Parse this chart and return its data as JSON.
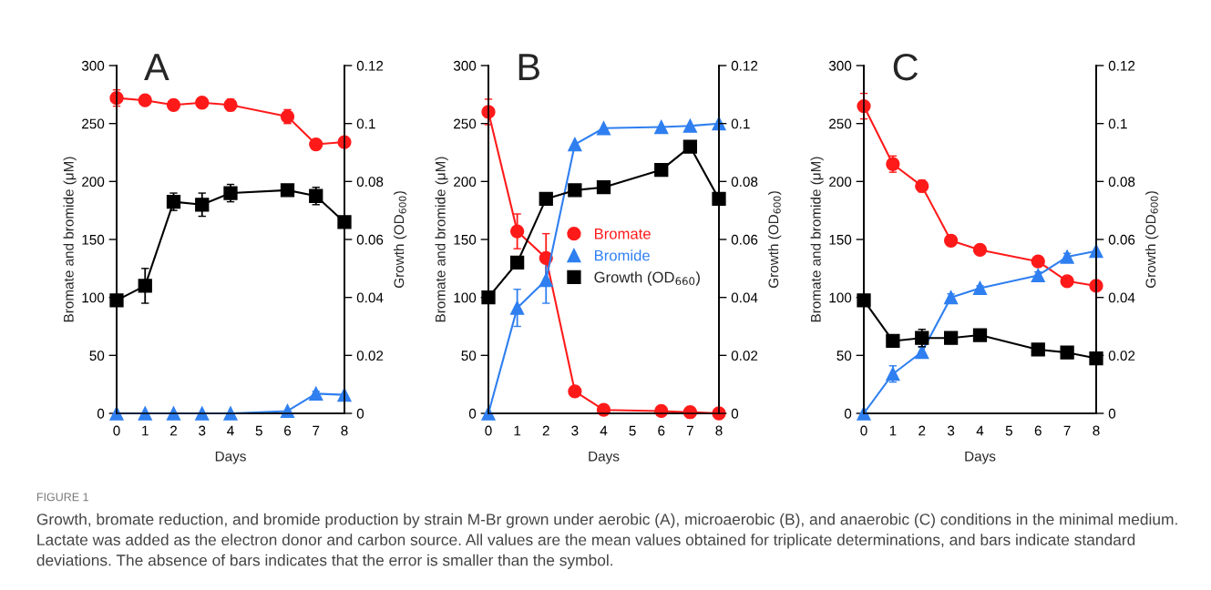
{
  "chart_data": [
    {
      "type": "line",
      "title": "A",
      "xlabel": "Days",
      "ylabel": "Bromate and bromide (μM)",
      "y2label": "Growth (OD$_{600}$)",
      "x": [
        0,
        1,
        2,
        3,
        4,
        6,
        7,
        8
      ],
      "xlim": [
        0,
        8
      ],
      "xticks": [
        0,
        1,
        2,
        3,
        4,
        5,
        6,
        7,
        8
      ],
      "ylim": [
        0,
        300
      ],
      "yticks": [
        0,
        50,
        100,
        150,
        200,
        250,
        300
      ],
      "y2lim": [
        0,
        0.12
      ],
      "y2ticks": [
        0,
        0.02,
        0.04,
        0.06,
        0.08,
        0.1,
        0.12
      ],
      "grid": false,
      "legend": false,
      "annotations": [
        "FIGURE 1",
        "Growth, bromate reduction, and bromide production by strain M-Br grown under aerobic (A), microaerobic (B), and anaerobic (C) conditions in the minimal medium. Lactate was added as the electron donor and carbon source. All values are the mean values obtained for triplicate determinations, and bars indicate standard deviations. The absence of bars indicates that the error is smaller than the symbol."
      ],
      "series": [
        {
          "color": "#ff1a1a",
          "marker": "circle",
          "values": [
            272,
            270,
            266,
            268,
            266,
            256,
            232,
            234
          ],
          "errors": [
            7,
            null,
            null,
            null,
            5,
            6,
            null,
            null
          ]
        },
        {
          "color": "#2f7ff0",
          "marker": "triangle",
          "values": [
            0,
            0,
            0,
            0,
            0,
            2,
            17,
            16
          ],
          "errors": [
            null,
            null,
            null,
            null,
            null,
            null,
            2,
            null
          ]
        },
        {
          "color": "#000000",
          "marker": "square",
          "axis": "y2",
          "values": [
            0.039,
            0.044,
            0.073,
            0.072,
            0.076,
            0.077,
            0.075,
            0.066
          ],
          "errors": [
            null,
            0.006,
            0.003,
            0.004,
            0.003,
            null,
            0.003,
            null
          ]
        }
      ]
    },
    {
      "type": "line",
      "title": "B",
      "xlabel": "Days",
      "ylabel": "Bromate and bromide (μM)",
      "y2label": "Growth (OD$_{600}$)",
      "x": [
        0,
        1,
        2,
        3,
        4,
        6,
        7,
        8
      ],
      "xlim": [
        0,
        8
      ],
      "xticks": [
        0,
        1,
        2,
        3,
        4,
        5,
        6,
        7,
        8
      ],
      "ylim": [
        0,
        300
      ],
      "yticks": [
        0,
        50,
        100,
        150,
        200,
        250,
        300
      ],
      "y2lim": [
        0,
        0.12
      ],
      "y2ticks": [
        0,
        0.02,
        0.04,
        0.06,
        0.08,
        0.1,
        0.12
      ],
      "grid": false,
      "legend": "right",
      "series": [
        {
          "name": "Bromate",
          "color": "#ff1a1a",
          "marker": "circle",
          "values": [
            260,
            157,
            134,
            19,
            3,
            2,
            1,
            0
          ],
          "errors": [
            11,
            15,
            21,
            null,
            null,
            null,
            null,
            null
          ]
        },
        {
          "name": "Bromide",
          "color": "#2f7ff0",
          "marker": "triangle",
          "values": [
            0,
            91,
            115,
            232,
            246,
            247,
            248,
            250
          ],
          "errors": [
            null,
            16,
            20,
            null,
            null,
            null,
            null,
            null
          ]
        },
        {
          "name": "Growth (OD$_{660}$)",
          "color": "#000000",
          "marker": "square",
          "axis": "y2",
          "values": [
            0.04,
            0.052,
            0.074,
            0.077,
            0.078,
            0.084,
            0.092,
            0.074
          ],
          "errors": [
            null,
            0.002,
            null,
            null,
            null,
            null,
            null,
            null
          ]
        }
      ]
    },
    {
      "type": "line",
      "title": "C",
      "xlabel": "Days",
      "ylabel": "Bromate and bromide (μM)",
      "y2label": "Growth (OD$_{600}$)",
      "x": [
        0,
        1,
        2,
        3,
        4,
        6,
        7,
        8
      ],
      "xlim": [
        0,
        8
      ],
      "xticks": [
        0,
        1,
        2,
        3,
        4,
        5,
        6,
        7,
        8
      ],
      "ylim": [
        0,
        300
      ],
      "yticks": [
        0,
        50,
        100,
        150,
        200,
        250,
        300
      ],
      "y2lim": [
        0,
        0.12
      ],
      "y2ticks": [
        0,
        0.02,
        0.04,
        0.06,
        0.08,
        0.1,
        0.12
      ],
      "grid": false,
      "legend": false,
      "series": [
        {
          "color": "#ff1a1a",
          "marker": "circle",
          "values": [
            265,
            215,
            196,
            149,
            141,
            131,
            114,
            110
          ],
          "errors": [
            11,
            7,
            5,
            null,
            null,
            null,
            null,
            null
          ]
        },
        {
          "color": "#2f7ff0",
          "marker": "triangle",
          "values": [
            0,
            34,
            53,
            100,
            108,
            119,
            135,
            140
          ],
          "errors": [
            null,
            7,
            4,
            3,
            2,
            3,
            3,
            null
          ]
        },
        {
          "color": "#000000",
          "marker": "square",
          "axis": "y2",
          "values": [
            0.039,
            0.025,
            0.026,
            0.026,
            0.027,
            0.022,
            0.021,
            0.019
          ],
          "errors": [
            null,
            null,
            0.003,
            null,
            null,
            null,
            null,
            null
          ]
        }
      ]
    }
  ]
}
